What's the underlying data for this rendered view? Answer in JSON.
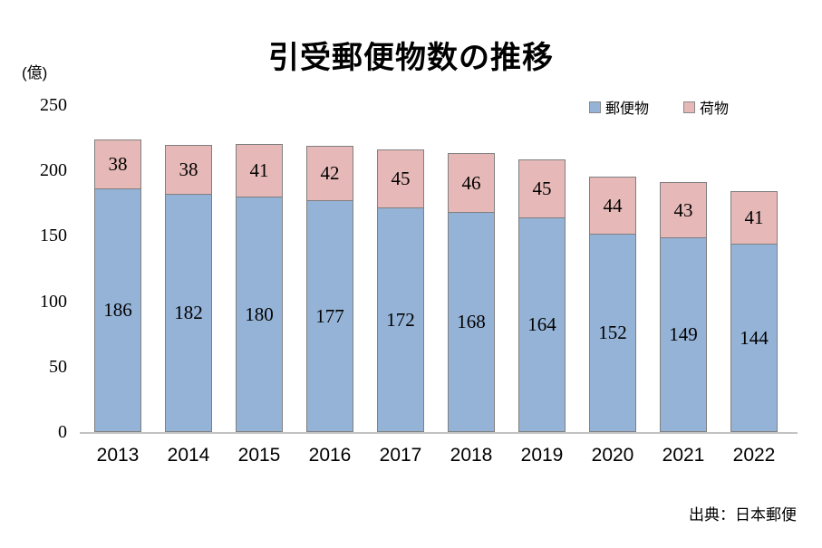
{
  "title": "引受郵便物数の推移",
  "unit_label": "(億)",
  "source": "出典：日本郵便",
  "legend": [
    {
      "label": "郵便物",
      "color": "#95B3D7"
    },
    {
      "label": "荷物",
      "color": "#E6B9B8"
    }
  ],
  "chart_data": {
    "type": "bar",
    "stacked": true,
    "title": "引受郵便物数の推移",
    "ylabel": "(億)",
    "categories": [
      "2013",
      "2014",
      "2015",
      "2016",
      "2017",
      "2018",
      "2019",
      "2020",
      "2021",
      "2022"
    ],
    "series": [
      {
        "name": "郵便物",
        "color": "#95B3D7",
        "values": [
          186,
          182,
          180,
          177,
          172,
          168,
          164,
          152,
          149,
          144
        ]
      },
      {
        "name": "荷物",
        "color": "#E6B9B8",
        "values": [
          38,
          38,
          41,
          42,
          45,
          46,
          45,
          44,
          43,
          41
        ]
      }
    ],
    "ylim": [
      0,
      250
    ],
    "yticks": [
      0,
      50,
      100,
      150,
      200,
      250
    ],
    "grid": false,
    "data_labels": true,
    "legend_position": "top-right",
    "bar_border_color": "#7f7f7f",
    "source": "出典：日本郵便"
  }
}
